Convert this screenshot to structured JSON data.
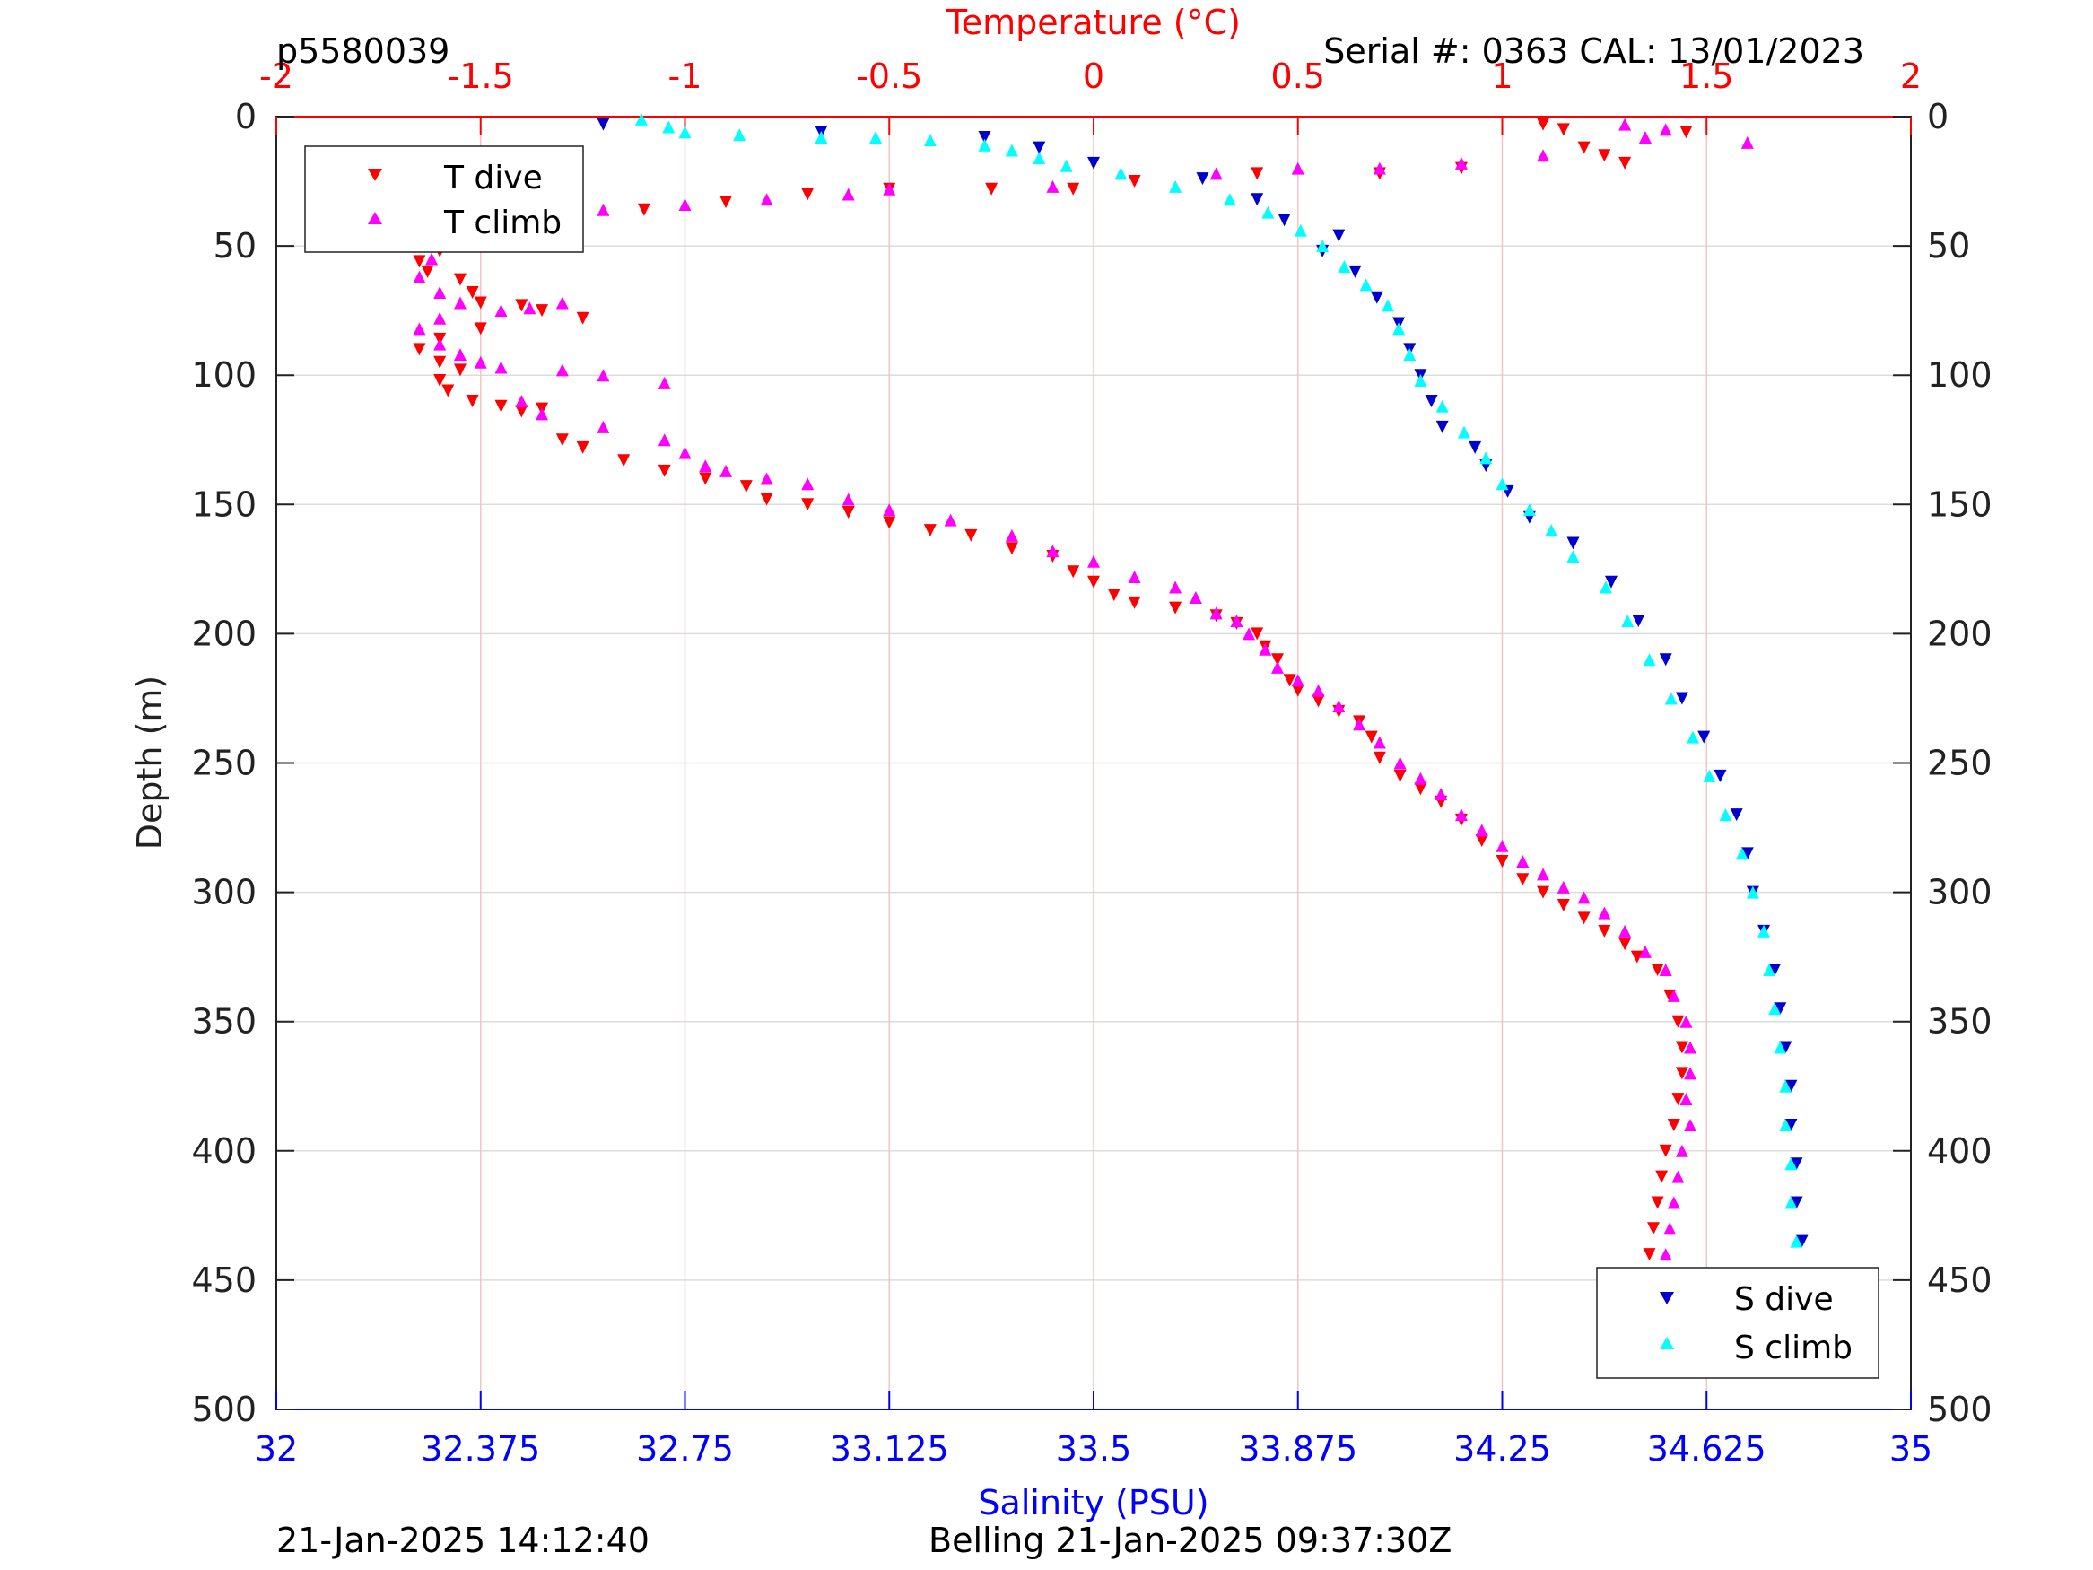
{
  "header": {
    "profile_id": "p5580039",
    "serial_cal": "Serial #: 0363  CAL: 13/01/2023"
  },
  "footer": {
    "plot_time": "21-Jan-2025 14:12:40",
    "dive_info": "Belling 21-Jan-2025 09:37:30Z"
  },
  "chart_data": {
    "type": "scatter",
    "colors": {
      "t_dive": "#ff0000",
      "t_climb": "#ff00ff",
      "s_dive": "#0000cc",
      "s_climb": "#00ffff",
      "temp_axis": "#ff0000",
      "sal_axis": "#0000ff",
      "grid": "#dcdcdc",
      "temp_grid": "#f2c4c4"
    },
    "axes": {
      "temperature": {
        "label": "Temperature (°C)",
        "lim": [
          -2,
          2
        ],
        "ticks": [
          "-2",
          "-1.5",
          "-1",
          "-0.5",
          "0",
          "0.5",
          "1",
          "1.5",
          "2"
        ]
      },
      "salinity": {
        "label": "Salinity (PSU)",
        "lim": [
          32,
          35
        ],
        "ticks": [
          "32",
          "32.375",
          "32.75",
          "33.125",
          "33.5",
          "33.875",
          "34.25",
          "34.625",
          "35"
        ]
      },
      "depth": {
        "label": "Depth (m)",
        "lim": [
          0,
          500
        ],
        "reversed": true,
        "ticks": [
          "0",
          "50",
          "100",
          "150",
          "200",
          "250",
          "300",
          "350",
          "400",
          "450",
          "500"
        ]
      }
    },
    "legends": {
      "temperature": {
        "position": "top-left",
        "entries": [
          "T dive",
          "T climb"
        ]
      },
      "salinity": {
        "position": "bottom-right",
        "entries": [
          "S dive",
          "S climb"
        ]
      }
    },
    "grid": true,
    "series": [
      {
        "name": "T dive",
        "axis": "temperature",
        "marker": "triangle-down",
        "points": [
          [
            1.1,
            3
          ],
          [
            1.15,
            5
          ],
          [
            1.45,
            6
          ],
          [
            1.2,
            12
          ],
          [
            1.25,
            15
          ],
          [
            1.3,
            18
          ],
          [
            0.9,
            20
          ],
          [
            0.7,
            22
          ],
          [
            0.4,
            22
          ],
          [
            0.1,
            25
          ],
          [
            -0.05,
            28
          ],
          [
            -0.25,
            28
          ],
          [
            -0.5,
            28
          ],
          [
            -0.7,
            30
          ],
          [
            -0.9,
            33
          ],
          [
            -1.1,
            36
          ],
          [
            -1.3,
            38
          ],
          [
            -1.45,
            42
          ],
          [
            -1.55,
            46
          ],
          [
            -1.6,
            52
          ],
          [
            -1.65,
            56
          ],
          [
            -1.63,
            60
          ],
          [
            -1.55,
            63
          ],
          [
            -1.52,
            68
          ],
          [
            -1.5,
            72
          ],
          [
            -1.4,
            73
          ],
          [
            -1.35,
            75
          ],
          [
            -1.25,
            78
          ],
          [
            -1.5,
            82
          ],
          [
            -1.6,
            86
          ],
          [
            -1.65,
            90
          ],
          [
            -1.6,
            95
          ],
          [
            -1.55,
            98
          ],
          [
            -1.6,
            102
          ],
          [
            -1.58,
            106
          ],
          [
            -1.52,
            110
          ],
          [
            -1.45,
            112
          ],
          [
            -1.4,
            114
          ],
          [
            -1.35,
            113
          ],
          [
            -1.3,
            125
          ],
          [
            -1.25,
            128
          ],
          [
            -1.15,
            133
          ],
          [
            -1.05,
            137
          ],
          [
            -0.95,
            140
          ],
          [
            -0.85,
            143
          ],
          [
            -0.8,
            148
          ],
          [
            -0.7,
            150
          ],
          [
            -0.6,
            153
          ],
          [
            -0.5,
            157
          ],
          [
            -0.4,
            160
          ],
          [
            -0.3,
            162
          ],
          [
            -0.2,
            167
          ],
          [
            -0.1,
            170
          ],
          [
            -0.05,
            176
          ],
          [
            0,
            180
          ],
          [
            0.05,
            185
          ],
          [
            0.1,
            188
          ],
          [
            0.2,
            190
          ],
          [
            0.3,
            193
          ],
          [
            0.35,
            196
          ],
          [
            0.4,
            200
          ],
          [
            0.42,
            205
          ],
          [
            0.45,
            210
          ],
          [
            0.48,
            218
          ],
          [
            0.5,
            222
          ],
          [
            0.55,
            226
          ],
          [
            0.6,
            230
          ],
          [
            0.65,
            234
          ],
          [
            0.68,
            240
          ],
          [
            0.7,
            248
          ],
          [
            0.75,
            255
          ],
          [
            0.8,
            260
          ],
          [
            0.85,
            265
          ],
          [
            0.9,
            272
          ],
          [
            0.95,
            280
          ],
          [
            1.0,
            288
          ],
          [
            1.05,
            295
          ],
          [
            1.1,
            300
          ],
          [
            1.15,
            305
          ],
          [
            1.2,
            310
          ],
          [
            1.25,
            315
          ],
          [
            1.3,
            320
          ],
          [
            1.33,
            325
          ],
          [
            1.38,
            330
          ],
          [
            1.41,
            340
          ],
          [
            1.43,
            350
          ],
          [
            1.44,
            360
          ],
          [
            1.44,
            370
          ],
          [
            1.43,
            380
          ],
          [
            1.42,
            390
          ],
          [
            1.4,
            400
          ],
          [
            1.39,
            410
          ],
          [
            1.38,
            420
          ],
          [
            1.37,
            430
          ],
          [
            1.36,
            440
          ],
          [
            1.35,
            450
          ],
          [
            1.34,
            457
          ]
        ]
      },
      {
        "name": "T climb",
        "axis": "temperature",
        "marker": "triangle-up",
        "points": [
          [
            1.6,
            10
          ],
          [
            1.4,
            5
          ],
          [
            1.35,
            8
          ],
          [
            1.3,
            3
          ],
          [
            1.1,
            15
          ],
          [
            0.9,
            18
          ],
          [
            0.7,
            20
          ],
          [
            0.5,
            20
          ],
          [
            0.3,
            22
          ],
          [
            -0.1,
            27
          ],
          [
            -0.5,
            28
          ],
          [
            -0.6,
            30
          ],
          [
            -0.8,
            32
          ],
          [
            -1.0,
            34
          ],
          [
            -1.2,
            36
          ],
          [
            -1.3,
            40
          ],
          [
            -1.4,
            45
          ],
          [
            -1.55,
            50
          ],
          [
            -1.62,
            55
          ],
          [
            -1.65,
            62
          ],
          [
            -1.6,
            68
          ],
          [
            -1.55,
            72
          ],
          [
            -1.45,
            75
          ],
          [
            -1.38,
            74
          ],
          [
            -1.3,
            72
          ],
          [
            -1.6,
            78
          ],
          [
            -1.65,
            82
          ],
          [
            -1.6,
            88
          ],
          [
            -1.55,
            92
          ],
          [
            -1.5,
            95
          ],
          [
            -1.45,
            97
          ],
          [
            -1.3,
            98
          ],
          [
            -1.2,
            100
          ],
          [
            -1.05,
            103
          ],
          [
            -1.4,
            110
          ],
          [
            -1.35,
            115
          ],
          [
            -1.2,
            120
          ],
          [
            -1.05,
            125
          ],
          [
            -1.0,
            130
          ],
          [
            -0.95,
            135
          ],
          [
            -0.9,
            137
          ],
          [
            -0.8,
            140
          ],
          [
            -0.7,
            142
          ],
          [
            -0.6,
            148
          ],
          [
            -0.5,
            152
          ],
          [
            -0.35,
            156
          ],
          [
            -0.2,
            162
          ],
          [
            -0.1,
            168
          ],
          [
            0.0,
            172
          ],
          [
            0.1,
            178
          ],
          [
            0.2,
            182
          ],
          [
            0.25,
            186
          ],
          [
            0.3,
            192
          ],
          [
            0.35,
            195
          ],
          [
            0.38,
            200
          ],
          [
            0.42,
            206
          ],
          [
            0.45,
            213
          ],
          [
            0.5,
            218
          ],
          [
            0.55,
            222
          ],
          [
            0.6,
            228
          ],
          [
            0.65,
            235
          ],
          [
            0.7,
            242
          ],
          [
            0.75,
            250
          ],
          [
            0.8,
            256
          ],
          [
            0.85,
            262
          ],
          [
            0.9,
            270
          ],
          [
            0.95,
            276
          ],
          [
            1.0,
            282
          ],
          [
            1.05,
            288
          ],
          [
            1.1,
            293
          ],
          [
            1.15,
            298
          ],
          [
            1.2,
            302
          ],
          [
            1.25,
            308
          ],
          [
            1.3,
            315
          ],
          [
            1.35,
            323
          ],
          [
            1.4,
            330
          ],
          [
            1.42,
            340
          ],
          [
            1.45,
            350
          ],
          [
            1.46,
            360
          ],
          [
            1.46,
            370
          ],
          [
            1.45,
            380
          ],
          [
            1.46,
            390
          ],
          [
            1.44,
            400
          ],
          [
            1.43,
            410
          ],
          [
            1.42,
            420
          ],
          [
            1.41,
            430
          ],
          [
            1.4,
            440
          ],
          [
            1.38,
            450
          ],
          [
            1.37,
            454
          ]
        ]
      },
      {
        "name": "S dive",
        "axis": "salinity",
        "marker": "triangle-down",
        "points": [
          [
            32.6,
            3
          ],
          [
            33.0,
            6
          ],
          [
            33.3,
            8
          ],
          [
            33.4,
            12
          ],
          [
            33.5,
            18
          ],
          [
            33.7,
            24
          ],
          [
            33.8,
            32
          ],
          [
            33.85,
            40
          ],
          [
            33.95,
            46
          ],
          [
            33.92,
            52
          ],
          [
            33.98,
            60
          ],
          [
            34.02,
            70
          ],
          [
            34.06,
            80
          ],
          [
            34.08,
            90
          ],
          [
            34.1,
            100
          ],
          [
            34.12,
            110
          ],
          [
            34.14,
            120
          ],
          [
            34.2,
            128
          ],
          [
            34.22,
            135
          ],
          [
            34.26,
            145
          ],
          [
            34.3,
            155
          ],
          [
            34.38,
            165
          ],
          [
            34.45,
            180
          ],
          [
            34.5,
            195
          ],
          [
            34.55,
            210
          ],
          [
            34.58,
            225
          ],
          [
            34.62,
            240
          ],
          [
            34.65,
            255
          ],
          [
            34.68,
            270
          ],
          [
            34.7,
            285
          ],
          [
            34.71,
            300
          ],
          [
            34.73,
            315
          ],
          [
            34.75,
            330
          ],
          [
            34.76,
            345
          ],
          [
            34.77,
            360
          ],
          [
            34.78,
            375
          ],
          [
            34.78,
            390
          ],
          [
            34.79,
            405
          ],
          [
            34.79,
            420
          ],
          [
            34.8,
            435
          ],
          [
            34.8,
            450
          ],
          [
            34.8,
            458
          ]
        ]
      },
      {
        "name": "S climb",
        "axis": "salinity",
        "marker": "triangle-up",
        "points": [
          [
            32.67,
            1
          ],
          [
            32.72,
            4
          ],
          [
            32.75,
            6
          ],
          [
            32.85,
            7
          ],
          [
            33.0,
            8
          ],
          [
            33.1,
            8
          ],
          [
            33.2,
            9
          ],
          [
            33.3,
            11
          ],
          [
            33.35,
            13
          ],
          [
            33.4,
            16
          ],
          [
            33.45,
            19
          ],
          [
            33.55,
            22
          ],
          [
            33.65,
            27
          ],
          [
            33.75,
            32
          ],
          [
            33.82,
            37
          ],
          [
            33.88,
            44
          ],
          [
            33.92,
            50
          ],
          [
            33.96,
            58
          ],
          [
            34.0,
            65
          ],
          [
            34.04,
            73
          ],
          [
            34.06,
            82
          ],
          [
            34.08,
            92
          ],
          [
            34.1,
            102
          ],
          [
            34.14,
            112
          ],
          [
            34.18,
            122
          ],
          [
            34.22,
            132
          ],
          [
            34.25,
            142
          ],
          [
            34.3,
            152
          ],
          [
            34.34,
            160
          ],
          [
            34.38,
            170
          ],
          [
            34.44,
            182
          ],
          [
            34.48,
            195
          ],
          [
            34.52,
            210
          ],
          [
            34.56,
            225
          ],
          [
            34.6,
            240
          ],
          [
            34.63,
            255
          ],
          [
            34.66,
            270
          ],
          [
            34.69,
            285
          ],
          [
            34.71,
            300
          ],
          [
            34.73,
            315
          ],
          [
            34.74,
            330
          ],
          [
            34.75,
            345
          ],
          [
            34.76,
            360
          ],
          [
            34.77,
            375
          ],
          [
            34.77,
            390
          ],
          [
            34.78,
            405
          ],
          [
            34.78,
            420
          ],
          [
            34.79,
            435
          ],
          [
            34.79,
            450
          ],
          [
            34.8,
            455
          ]
        ]
      }
    ]
  }
}
